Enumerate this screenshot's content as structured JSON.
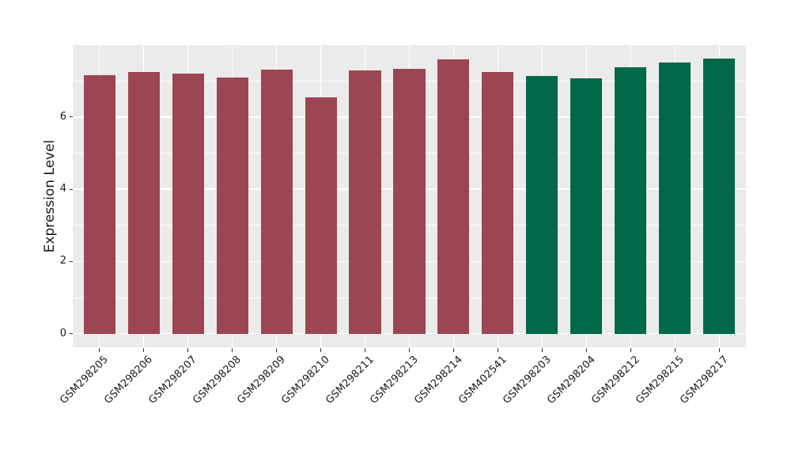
{
  "chart_data": {
    "type": "bar",
    "title": "",
    "xlabel": "",
    "ylabel": "Expression Level",
    "categories": [
      "GSM298205",
      "GSM298206",
      "GSM298207",
      "GSM298208",
      "GSM298209",
      "GSM298210",
      "GSM298211",
      "GSM298213",
      "GSM298214",
      "GSM402541",
      "GSM298203",
      "GSM298204",
      "GSM298212",
      "GSM298215",
      "GSM298217"
    ],
    "values": [
      7.15,
      7.25,
      7.2,
      7.1,
      7.3,
      6.55,
      7.28,
      7.34,
      7.6,
      7.25,
      7.14,
      7.07,
      7.38,
      7.5,
      7.62
    ],
    "bar_colors": [
      "#9C4553",
      "#9C4553",
      "#9C4553",
      "#9C4553",
      "#9C4553",
      "#9C4553",
      "#9C4553",
      "#9C4553",
      "#9C4553",
      "#9C4553",
      "#01684A",
      "#01684A",
      "#01684A",
      "#01684A",
      "#01684A"
    ],
    "group_colors": {
      "left_group": "#9C4553",
      "right_group": "#01684A"
    },
    "yticks_major": [
      0,
      2,
      4,
      6
    ],
    "yticks_minor": [
      1,
      3,
      5,
      7
    ],
    "ylim": [
      -0.38,
      7.99
    ],
    "grid": "on",
    "legend_position": "none",
    "panel_bg": "#EBEBEB",
    "grid_color": "#FFFFFF",
    "tick_color": "#333333",
    "text_color": "#1A1A1A"
  }
}
